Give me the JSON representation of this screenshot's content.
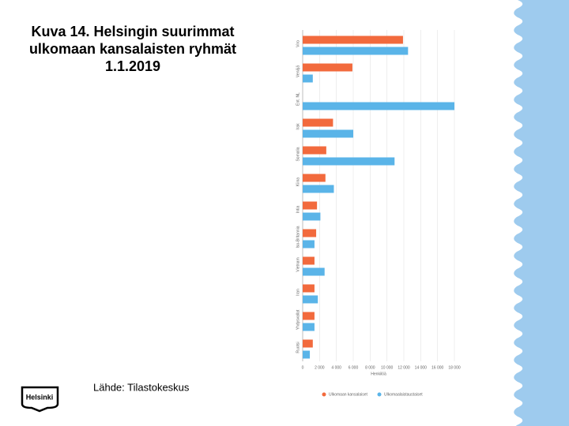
{
  "title_lines": [
    "Kuva 14. Helsingin suurimmat",
    "ulkomaan kansalaisten ryhmät",
    "1.1.2019"
  ],
  "source": "Lähde: Tilastokeskus",
  "logo": "Helsinki",
  "chart_data": {
    "type": "hbar",
    "categories": [
      "Viro",
      "Venäjä",
      "Ent. NL",
      "Irak",
      "Somalia",
      "Kiina",
      "Intia",
      "Iso-Britannia",
      "Vietnam",
      "Iran",
      "Yhdysvallat",
      "Ruotsi"
    ],
    "series": [
      {
        "name": "Ulkomaan kansalaiset",
        "color": "#f26a3d",
        "values": [
          11900,
          5900,
          null,
          3600,
          2800,
          2700,
          1700,
          1600,
          1400,
          1400,
          1400,
          1200
        ]
      },
      {
        "name": "Ulkomaalaistaustaiset",
        "color": "#5ab4e8",
        "values": [
          12500,
          1200,
          18000,
          6000,
          10900,
          3700,
          2100,
          1400,
          2600,
          1800,
          1400,
          850
        ]
      }
    ],
    "xlim": [
      0,
      18000
    ],
    "xticks": [
      0,
      {
        "value": 2000,
        "label": "2 000"
      },
      {
        "value": 4000,
        "label": "4 000"
      },
      {
        "value": 6000,
        "label": "6 000"
      },
      {
        "value": 8000,
        "label": "8 000"
      },
      {
        "value": 10000,
        "label": "10 000"
      },
      {
        "value": 12000,
        "label": "12 000"
      },
      {
        "value": 14000,
        "label": "14 000"
      },
      {
        "value": 16000,
        "label": "16 000"
      },
      {
        "value": 18000,
        "label": "18 000"
      }
    ],
    "xlabel": "Henkilöä",
    "grid": true
  }
}
